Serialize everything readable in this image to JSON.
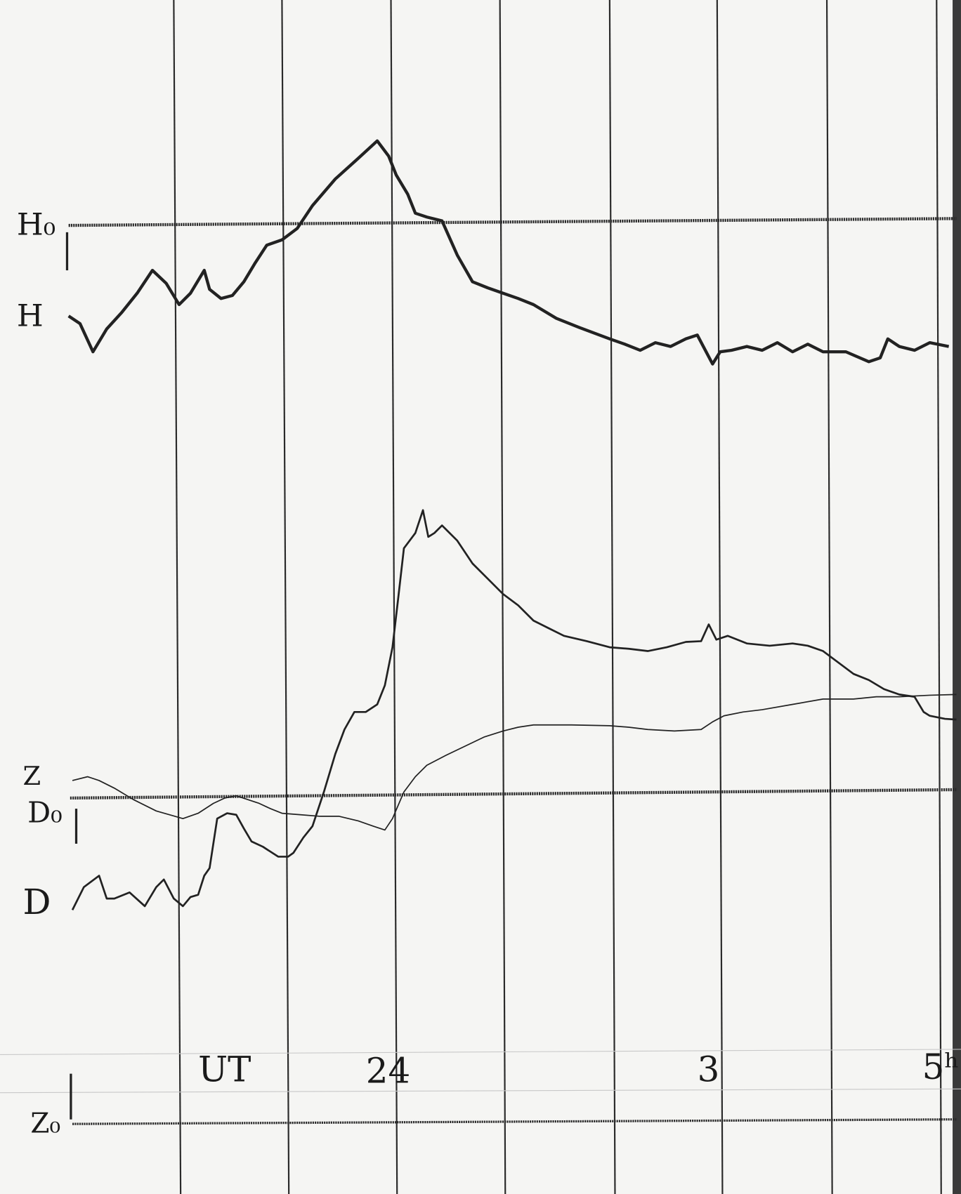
{
  "labels": {
    "h_baseline": "H₀",
    "h_trace": "H",
    "z_trace": "Z",
    "d_baseline": "D₀",
    "d_trace": "D",
    "z_baseline": "Z₀"
  },
  "time_axis": {
    "unit": "UT",
    "marks": [
      "24",
      "3",
      "5ʰ"
    ]
  }
}
